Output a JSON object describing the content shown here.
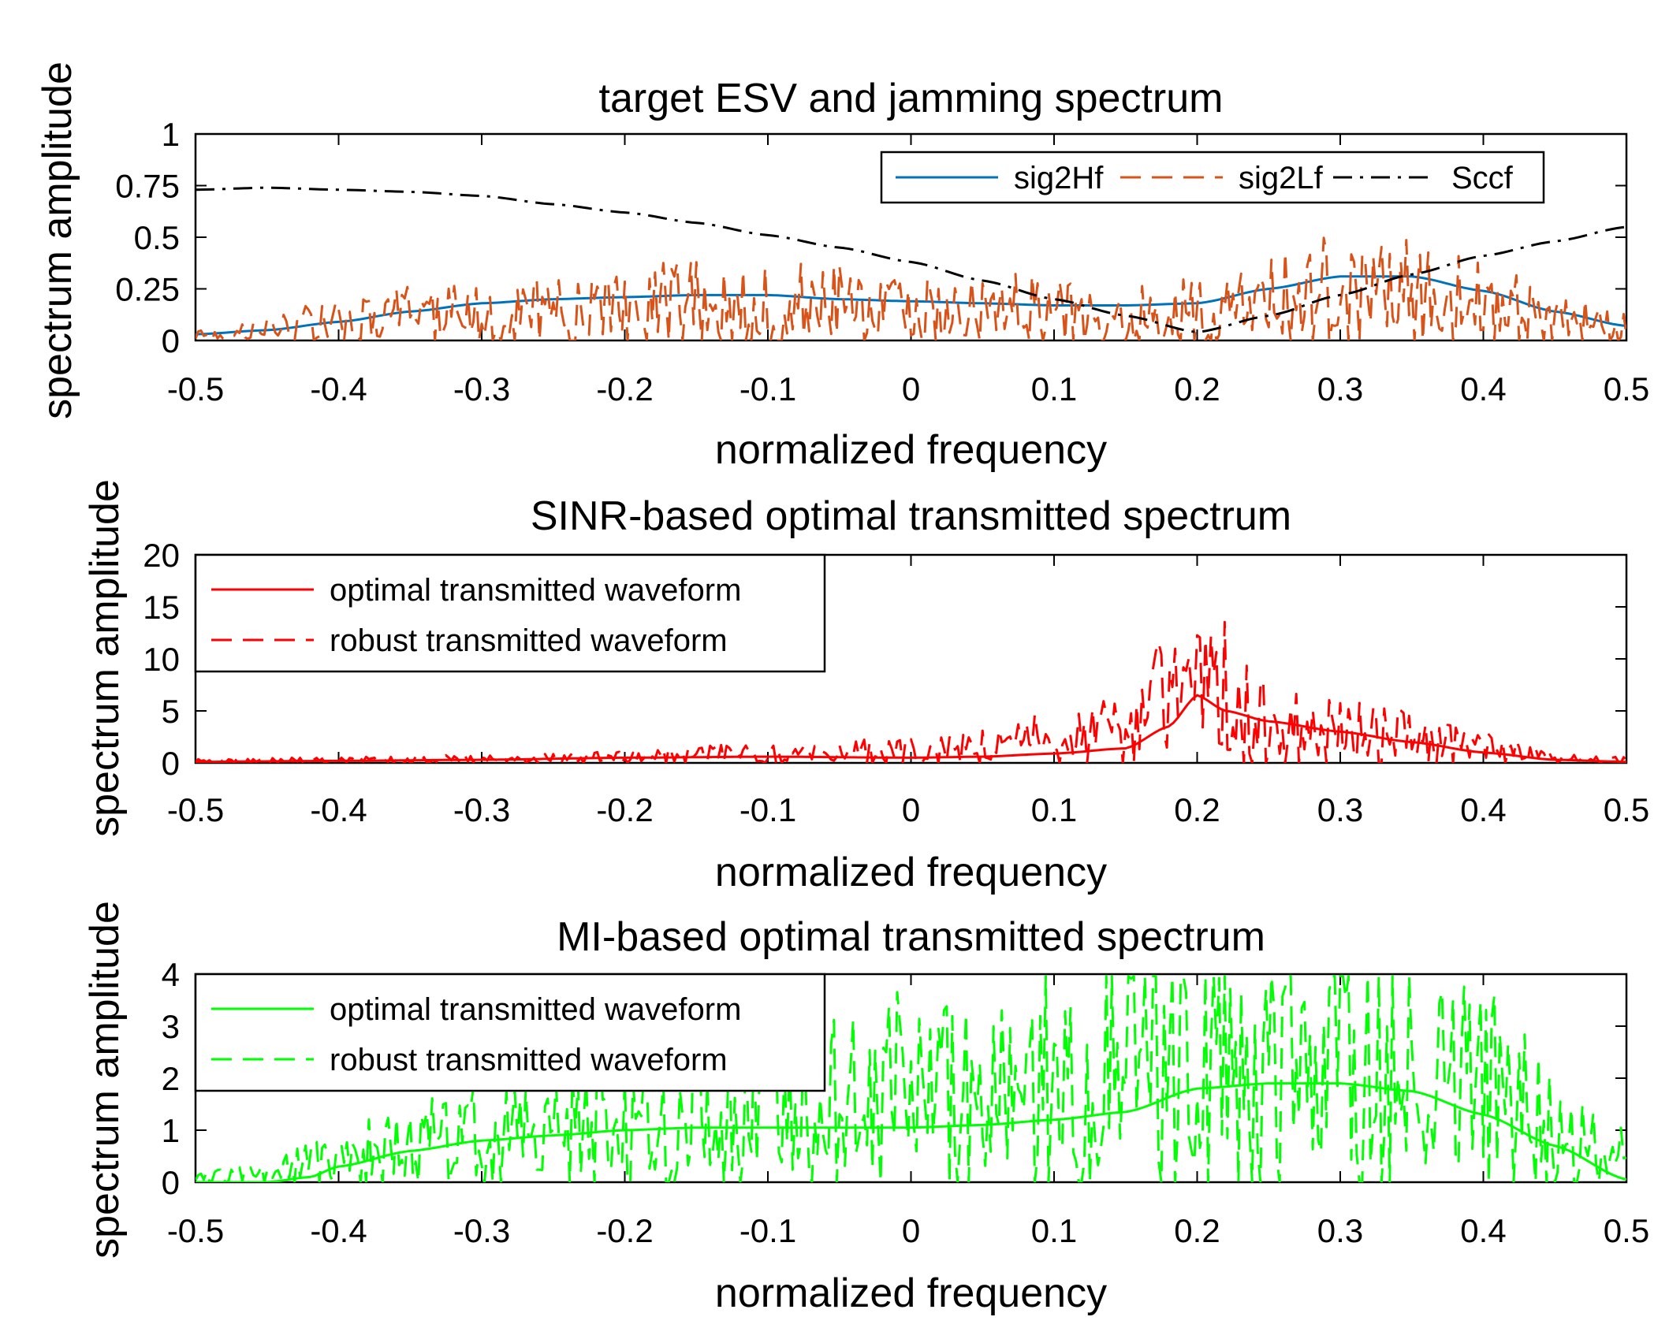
{
  "colors": {
    "blue": "#0072BD",
    "orange": "#D95319",
    "black": "#000000",
    "red": "#FF0000",
    "green": "#00FF00"
  },
  "chart_data": [
    {
      "type": "line",
      "title": "target ESV and jamming spectrum",
      "xlabel": "normalized frequency",
      "ylabel": "spectrum amplitude",
      "xlim": [
        -0.5,
        0.5
      ],
      "ylim": [
        0,
        1
      ],
      "xticks": [
        -0.5,
        -0.4,
        -0.3,
        -0.2,
        -0.1,
        0,
        0.1,
        0.2,
        0.3,
        0.4,
        0.5
      ],
      "xtick_labels": [
        "-0.5",
        "-0.4",
        "-0.3",
        "-0.2",
        "-0.1",
        "0",
        "0.1",
        "0.2",
        "0.3",
        "0.4",
        "0.5"
      ],
      "yticks": [
        0,
        0.25,
        0.5,
        0.75,
        1
      ],
      "ytick_labels": [
        "0",
        "0.25",
        "0.5",
        "0.75",
        "1"
      ],
      "legend_position": "top-right-horizontal",
      "series": [
        {
          "name": "sig2Hf",
          "style": "solid",
          "color": "#0072BD",
          "x": [
            -0.5,
            -0.45,
            -0.4,
            -0.35,
            -0.3,
            -0.25,
            -0.2,
            -0.15,
            -0.1,
            -0.05,
            0,
            0.05,
            0.1,
            0.15,
            0.2,
            0.25,
            0.3,
            0.35,
            0.4,
            0.45,
            0.5
          ],
          "y": [
            0.03,
            0.05,
            0.09,
            0.14,
            0.18,
            0.2,
            0.21,
            0.22,
            0.22,
            0.2,
            0.19,
            0.18,
            0.17,
            0.17,
            0.18,
            0.25,
            0.31,
            0.31,
            0.24,
            0.14,
            0.07
          ]
        },
        {
          "name": "sig2Lf",
          "style": "dashed-noisy",
          "color": "#D95319",
          "envelope_x": [
            -0.5,
            -0.4,
            -0.3,
            -0.2,
            -0.1,
            0,
            0.1,
            0.2,
            0.3,
            0.4,
            0.5
          ],
          "envelope_y": [
            0.02,
            0.1,
            0.15,
            0.18,
            0.19,
            0.17,
            0.15,
            0.15,
            0.25,
            0.22,
            0.06
          ],
          "seed": 7
        },
        {
          "name": "Sccf",
          "style": "dashdot",
          "color": "#000000",
          "x": [
            -0.5,
            -0.45,
            -0.4,
            -0.35,
            -0.3,
            -0.25,
            -0.2,
            -0.15,
            -0.1,
            -0.05,
            0,
            0.05,
            0.1,
            0.15,
            0.2,
            0.25,
            0.3,
            0.35,
            0.4,
            0.45,
            0.5
          ],
          "y": [
            0.73,
            0.74,
            0.73,
            0.72,
            0.7,
            0.66,
            0.62,
            0.57,
            0.51,
            0.45,
            0.38,
            0.29,
            0.2,
            0.12,
            0.04,
            0.12,
            0.22,
            0.32,
            0.41,
            0.48,
            0.55
          ]
        }
      ]
    },
    {
      "type": "line",
      "title": "SINR-based optimal transmitted spectrum",
      "xlabel": "normalized frequency",
      "ylabel": "spectrum amplitude",
      "xlim": [
        -0.5,
        0.5
      ],
      "ylim": [
        0,
        20
      ],
      "xticks": [
        -0.5,
        -0.4,
        -0.3,
        -0.2,
        -0.1,
        0,
        0.1,
        0.2,
        0.3,
        0.4,
        0.5
      ],
      "xtick_labels": [
        "-0.5",
        "-0.4",
        "-0.3",
        "-0.2",
        "-0.1",
        "0",
        "0.1",
        "0.2",
        "0.3",
        "0.4",
        "0.5"
      ],
      "yticks": [
        0,
        5,
        10,
        15,
        20
      ],
      "ytick_labels": [
        "0",
        "5",
        "10",
        "15",
        "20"
      ],
      "legend_position": "top-left",
      "series": [
        {
          "name": "optimal transmitted waveform",
          "style": "solid",
          "color": "#FF0000",
          "x": [
            -0.5,
            -0.4,
            -0.3,
            -0.2,
            -0.1,
            0,
            0.05,
            0.1,
            0.15,
            0.18,
            0.2,
            0.22,
            0.25,
            0.3,
            0.35,
            0.4,
            0.45,
            0.5
          ],
          "y": [
            0.1,
            0.2,
            0.3,
            0.5,
            0.6,
            0.5,
            0.6,
            0.9,
            1.4,
            3.5,
            6.5,
            5.0,
            4.0,
            3.0,
            2.0,
            1.0,
            0.3,
            0.1
          ]
        },
        {
          "name": "robust transmitted waveform",
          "style": "dashed-noisy",
          "color": "#FF0000",
          "envelope_x": [
            -0.5,
            -0.4,
            -0.3,
            -0.2,
            -0.1,
            0,
            0.05,
            0.1,
            0.15,
            0.18,
            0.2,
            0.22,
            0.25,
            0.3,
            0.35,
            0.4,
            0.45,
            0.5
          ],
          "envelope_y": [
            0.2,
            0.3,
            0.4,
            0.6,
            1.0,
            1.2,
            1.5,
            2.5,
            3.5,
            8.0,
            9.5,
            7.0,
            4.0,
            3.5,
            2.5,
            1.5,
            0.5,
            0.3
          ],
          "seed": 13
        }
      ]
    },
    {
      "type": "line",
      "title": "MI-based optimal transmitted spectrum",
      "xlabel": "normalized frequency",
      "ylabel": "spectrum amplitude",
      "xlim": [
        -0.5,
        0.5
      ],
      "ylim": [
        0,
        4
      ],
      "xticks": [
        -0.5,
        -0.4,
        -0.3,
        -0.2,
        -0.1,
        0,
        0.1,
        0.2,
        0.3,
        0.4,
        0.5
      ],
      "xtick_labels": [
        "-0.5",
        "-0.4",
        "-0.3",
        "-0.2",
        "-0.1",
        "0",
        "0.1",
        "0.2",
        "0.3",
        "0.4",
        "0.5"
      ],
      "yticks": [
        0,
        1,
        2,
        3,
        4
      ],
      "ytick_labels": [
        "0",
        "1",
        "2",
        "3",
        "4"
      ],
      "legend_position": "top-left",
      "series": [
        {
          "name": "optimal transmitted waveform",
          "style": "solid",
          "color": "#00FF00",
          "x": [
            -0.5,
            -0.45,
            -0.42,
            -0.4,
            -0.35,
            -0.3,
            -0.25,
            -0.2,
            -0.15,
            -0.1,
            -0.05,
            0,
            0.05,
            0.1,
            0.15,
            0.2,
            0.25,
            0.3,
            0.35,
            0.4,
            0.45,
            0.5
          ],
          "y": [
            0,
            0,
            0.1,
            0.3,
            0.6,
            0.8,
            0.9,
            1.0,
            1.05,
            1.05,
            1.05,
            1.05,
            1.1,
            1.2,
            1.35,
            1.8,
            1.9,
            1.9,
            1.75,
            1.3,
            0.7,
            0.05
          ]
        },
        {
          "name": "robust transmitted waveform",
          "style": "dashed-noisy",
          "color": "#00FF00",
          "envelope_x": [
            -0.5,
            -0.45,
            -0.4,
            -0.3,
            -0.2,
            -0.1,
            0,
            0.1,
            0.2,
            0.3,
            0.4,
            0.45,
            0.5
          ],
          "envelope_y": [
            0.1,
            0.2,
            0.6,
            0.9,
            1.2,
            1.5,
            1.8,
            2.0,
            2.6,
            2.6,
            2.0,
            1.0,
            0.5
          ],
          "seed": 29
        }
      ]
    }
  ]
}
